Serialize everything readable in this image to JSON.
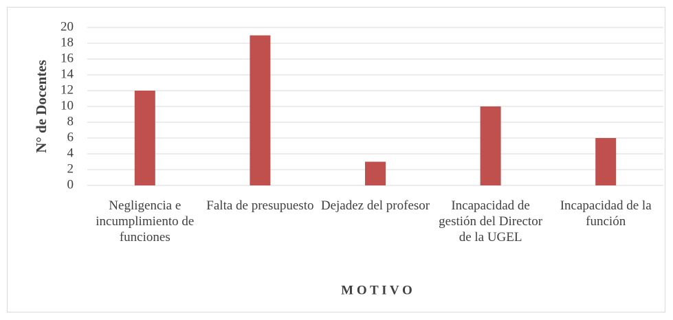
{
  "chart_data": {
    "type": "bar",
    "y_label": "N° de Docentes",
    "x_label": "M O T I V O",
    "categories": [
      "Negligencia e incumplimiento de funciones",
      "Falta de presupuesto",
      "Dejadez del profesor",
      "Incapacidad de gestión del Director de la UGEL",
      "Incapacidad de la función"
    ],
    "values": [
      12,
      19,
      3,
      10,
      6
    ],
    "color": "#c0504d",
    "ylim": [
      0,
      20
    ],
    "yticks": [
      0,
      2,
      4,
      6,
      8,
      10,
      12,
      14,
      16,
      18,
      20
    ],
    "grid": true
  }
}
